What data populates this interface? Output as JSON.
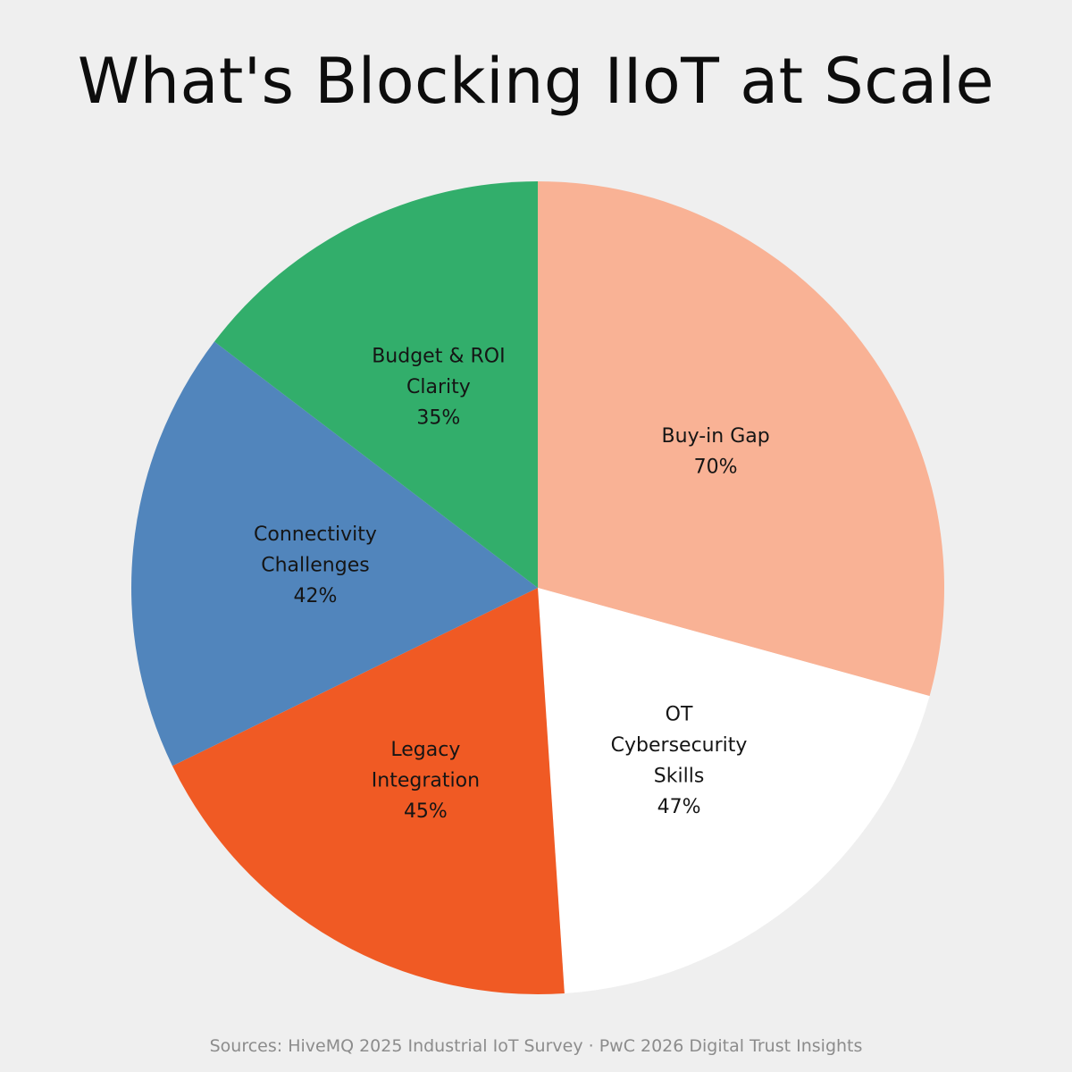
{
  "chart_data": {
    "type": "pie",
    "title": "What's Blocking IIoT at Scale",
    "slices": [
      {
        "label_lines": [
          "Buy-in Gap"
        ],
        "value_label": "70%",
        "value": 70,
        "color": "#f9b295"
      },
      {
        "label_lines": [
          "OT",
          "Cybersecurity",
          "Skills"
        ],
        "value_label": "47%",
        "value": 47,
        "color": "#ffffff"
      },
      {
        "label_lines": [
          "Legacy",
          "Integration"
        ],
        "value_label": "45%",
        "value": 45,
        "color": "#f05a24"
      },
      {
        "label_lines": [
          "Connectivity",
          "Challenges"
        ],
        "value_label": "42%",
        "value": 42,
        "color": "#5185bc"
      },
      {
        "label_lines": [
          "Budget & ROI",
          "Clarity"
        ],
        "value_label": "35%",
        "value": 35,
        "color": "#32ae6b"
      }
    ],
    "start": "12 o'clock",
    "direction": "clockwise",
    "source": "Sources: HiveMQ 2025 Industrial IoT Survey · PwC 2026 Digital Trust Insights"
  }
}
